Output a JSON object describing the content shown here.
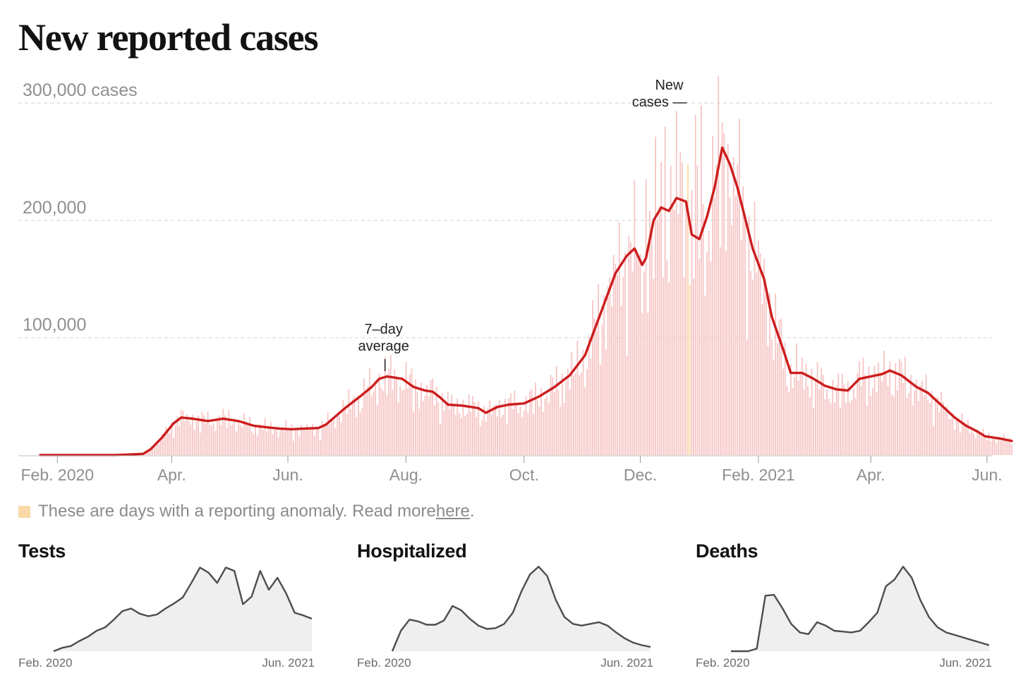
{
  "title": "New reported cases",
  "note": {
    "text": "These are days with a reporting anomaly. Read more ",
    "link": "here",
    "end": ".",
    "swatch_color": "#fad8a8"
  },
  "colors": {
    "line": "#cc1d1d",
    "bars": "#f7c5c5",
    "anomaly": "#fad8a8",
    "small_line": "#4d4d4d",
    "small_fill": "#efefef"
  },
  "chart_data": [
    {
      "type": "bar+line",
      "title": "New reported cases",
      "ylim": [
        0,
        300000
      ],
      "y_ticks": [
        {
          "value": 100000,
          "label": "100,000"
        },
        {
          "value": 200000,
          "label": "200,000"
        },
        {
          "value": 300000,
          "label": "300,000 cases"
        }
      ],
      "x_ticks": [
        {
          "day": 9,
          "label": "Feb. 2020"
        },
        {
          "day": 69,
          "label": "Apr."
        },
        {
          "day": 130,
          "label": "Jun."
        },
        {
          "day": 192,
          "label": "Aug."
        },
        {
          "day": 254,
          "label": "Oct."
        },
        {
          "day": 315,
          "label": "Dec."
        },
        {
          "day": 377,
          "label": "Feb. 2021"
        },
        {
          "day": 436,
          "label": "Apr."
        },
        {
          "day": 497,
          "label": "Jun."
        }
      ],
      "x_range_days": [
        0,
        510
      ],
      "annotations": [
        {
          "label_lines": [
            "7–day",
            "average"
          ],
          "day": 181,
          "value": 67000
        },
        {
          "label_lines": [
            "New",
            "cases —"
          ],
          "day": 345,
          "value": 300000
        }
      ],
      "anomaly_days": [
        340,
        341
      ],
      "seven_day_average": [
        [
          0,
          0
        ],
        [
          40,
          0
        ],
        [
          54,
          1000
        ],
        [
          58,
          5000
        ],
        [
          64,
          15000
        ],
        [
          70,
          27000
        ],
        [
          74,
          32000
        ],
        [
          80,
          31000
        ],
        [
          88,
          29000
        ],
        [
          96,
          31000
        ],
        [
          104,
          29000
        ],
        [
          112,
          25000
        ],
        [
          120,
          23500
        ],
        [
          126,
          22500
        ],
        [
          132,
          22000
        ],
        [
          138,
          22500
        ],
        [
          146,
          23000
        ],
        [
          150,
          26000
        ],
        [
          160,
          40000
        ],
        [
          168,
          50000
        ],
        [
          174,
          58000
        ],
        [
          178,
          65000
        ],
        [
          182,
          67000
        ],
        [
          186,
          66000
        ],
        [
          190,
          65000
        ],
        [
          196,
          58000
        ],
        [
          202,
          55000
        ],
        [
          206,
          54000
        ],
        [
          210,
          49000
        ],
        [
          214,
          43000
        ],
        [
          222,
          42000
        ],
        [
          230,
          40000
        ],
        [
          234,
          36000
        ],
        [
          240,
          41000
        ],
        [
          246,
          43000
        ],
        [
          254,
          44000
        ],
        [
          262,
          50000
        ],
        [
          270,
          58000
        ],
        [
          278,
          68000
        ],
        [
          286,
          85000
        ],
        [
          294,
          120000
        ],
        [
          302,
          155000
        ],
        [
          308,
          170000
        ],
        [
          312,
          176000
        ],
        [
          316,
          162000
        ],
        [
          318,
          168000
        ],
        [
          322,
          200000
        ],
        [
          326,
          211000
        ],
        [
          330,
          208000
        ],
        [
          334,
          219000
        ],
        [
          339,
          216000
        ],
        [
          342,
          188000
        ],
        [
          346,
          184000
        ],
        [
          350,
          203000
        ],
        [
          354,
          228000
        ],
        [
          358,
          262000
        ],
        [
          362,
          248000
        ],
        [
          366,
          228000
        ],
        [
          370,
          202000
        ],
        [
          374,
          176000
        ],
        [
          380,
          150000
        ],
        [
          384,
          118000
        ],
        [
          390,
          90000
        ],
        [
          394,
          70000
        ],
        [
          400,
          70000
        ],
        [
          406,
          65000
        ],
        [
          412,
          59000
        ],
        [
          418,
          56000
        ],
        [
          424,
          55000
        ],
        [
          430,
          65000
        ],
        [
          436,
          67000
        ],
        [
          442,
          69000
        ],
        [
          446,
          72000
        ],
        [
          452,
          68000
        ],
        [
          460,
          58000
        ],
        [
          466,
          53000
        ],
        [
          472,
          44000
        ],
        [
          480,
          32000
        ],
        [
          486,
          25000
        ],
        [
          492,
          20000
        ],
        [
          496,
          16000
        ],
        [
          500,
          15000
        ],
        [
          504,
          14000
        ],
        [
          510,
          12000
        ]
      ],
      "daily_highlights": [
        [
          328,
          280000
        ],
        [
          336,
          258000
        ],
        [
          344,
          290000
        ],
        [
          347,
          298000
        ],
        [
          318,
          235000
        ],
        [
          340,
          248000
        ],
        [
          397,
          95000
        ],
        [
          446,
          80000
        ]
      ]
    },
    {
      "type": "area",
      "title": "Tests",
      "x_tick_labels": [
        "Feb. 2020",
        "Jun. 2021"
      ],
      "values": [
        0,
        4,
        6,
        12,
        17,
        24,
        28,
        37,
        47,
        50,
        44,
        41,
        43,
        50,
        56,
        63,
        80,
        98,
        92,
        80,
        98,
        94,
        55,
        64,
        94,
        72,
        86,
        68,
        45,
        42,
        38
      ]
    },
    {
      "type": "area",
      "title": "Hospitalized",
      "x_tick_labels": [
        "Feb. 2020",
        "Jun. 2021"
      ],
      "values": [
        0,
        24,
        37,
        35,
        31,
        31,
        36,
        53,
        48,
        38,
        30,
        26,
        27,
        32,
        45,
        70,
        90,
        99,
        88,
        60,
        40,
        32,
        30,
        32,
        34,
        30,
        22,
        15,
        10,
        7,
        5
      ]
    },
    {
      "type": "area",
      "title": "Deaths",
      "x_tick_labels": [
        "Feb. 2020",
        "Jun. 2021"
      ],
      "values": [
        0,
        0,
        0,
        3,
        65,
        66,
        50,
        32,
        22,
        20,
        34,
        30,
        24,
        23,
        22,
        24,
        34,
        45,
        76,
        84,
        99,
        86,
        60,
        40,
        28,
        22,
        19,
        16,
        13,
        10,
        7
      ]
    }
  ]
}
